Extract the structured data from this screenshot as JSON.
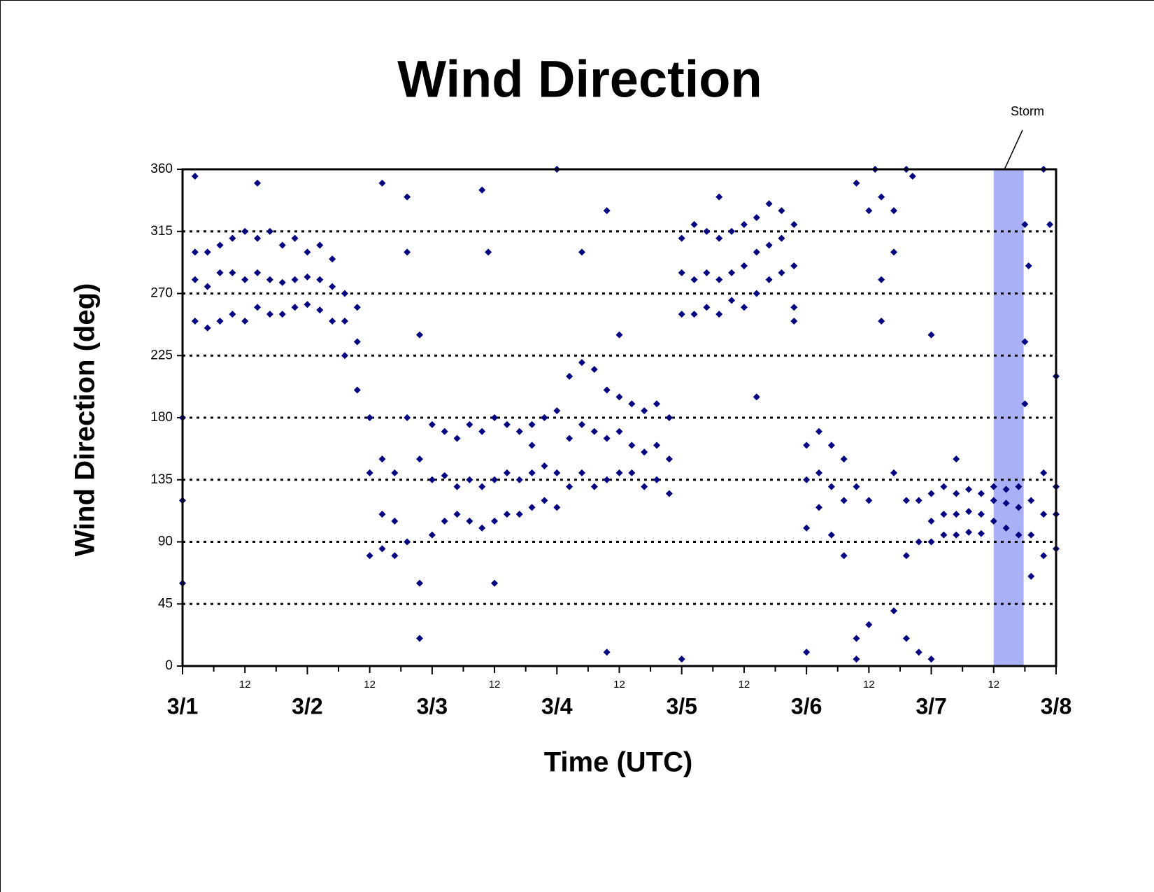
{
  "chart_data": {
    "type": "scatter",
    "title": "Wind Direction",
    "y_label": "Wind Direction (deg)",
    "x_label": "Time (UTC)",
    "color": "#000080",
    "ylim": [
      0,
      360
    ],
    "yticks": [
      0,
      45,
      90,
      135,
      180,
      225,
      270,
      315,
      360
    ],
    "grid": true,
    "xlim": [
      0,
      7
    ],
    "xticks": [
      {
        "value": 0,
        "label": "3/1"
      },
      {
        "value": 1,
        "label": "3/2"
      },
      {
        "value": 2,
        "label": "3/3"
      },
      {
        "value": 3,
        "label": "3/4"
      },
      {
        "value": 4,
        "label": "3/5"
      },
      {
        "value": 5,
        "label": "3/6"
      },
      {
        "value": 6,
        "label": "3/7"
      },
      {
        "value": 7,
        "label": "3/8"
      }
    ],
    "xticks_minor": [
      {
        "value": 0.5,
        "label": "12"
      },
      {
        "value": 1.5,
        "label": "12"
      },
      {
        "value": 2.5,
        "label": "12"
      },
      {
        "value": 3.5,
        "label": "12"
      },
      {
        "value": 4.5,
        "label": "12"
      },
      {
        "value": 5.5,
        "label": "12"
      },
      {
        "value": 6.5,
        "label": "12"
      }
    ],
    "xticks_unlabeled": [
      0.25,
      0.75,
      1.25,
      1.75,
      2.25,
      2.75,
      3.25,
      3.75,
      4.25,
      4.75,
      5.25,
      5.75,
      6.25,
      6.75
    ],
    "storm": {
      "label": "Storm",
      "span": [
        6.5,
        6.74
      ],
      "color": "#aab0f5"
    },
    "x": [
      0,
      0,
      0,
      0.1,
      0.1,
      0.1,
      0.2,
      0.2,
      0.2,
      0.3,
      0.3,
      0.3,
      0.4,
      0.4,
      0.4,
      0.5,
      0.5,
      0.5,
      0.6,
      0.6,
      0.6,
      0.7,
      0.7,
      0.7,
      0.8,
      0.8,
      0.8,
      0.9,
      0.9,
      0.9,
      1,
      1,
      1,
      1.1,
      1.1,
      1.1,
      1.2,
      1.2,
      1.2,
      1.3,
      1.3,
      1.3,
      1.4,
      1.4,
      1.4,
      1.5,
      1.5,
      1.5,
      1.6,
      1.6,
      1.6,
      1.7,
      1.7,
      1.7,
      1.8,
      1.8,
      1.8,
      1.9,
      1.9,
      1.9,
      2,
      2,
      2,
      2.1,
      2.1,
      2.1,
      2.2,
      2.2,
      2.2,
      2.3,
      2.3,
      2.3,
      2.4,
      2.4,
      2.4,
      2.5,
      2.5,
      2.5,
      2.6,
      2.6,
      2.6,
      2.7,
      2.7,
      2.7,
      2.8,
      2.8,
      2.8,
      2.9,
      2.9,
      2.9,
      3,
      3,
      3,
      3.1,
      3.1,
      3.1,
      3.2,
      3.2,
      3.2,
      3.3,
      3.3,
      3.3,
      3.4,
      3.4,
      3.4,
      3.5,
      3.5,
      3.5,
      3.6,
      3.6,
      3.6,
      3.7,
      3.7,
      3.7,
      3.8,
      3.8,
      3.8,
      3.9,
      3.9,
      3.9,
      4,
      4,
      4,
      4.1,
      4.1,
      4.1,
      4.2,
      4.2,
      4.2,
      4.3,
      4.3,
      4.3,
      4.4,
      4.4,
      4.4,
      4.5,
      4.5,
      4.5,
      4.6,
      4.6,
      4.6,
      4.7,
      4.7,
      4.7,
      4.8,
      4.8,
      4.8,
      4.9,
      4.9,
      4.9,
      5,
      5,
      5,
      5.1,
      5.1,
      5.1,
      5.2,
      5.2,
      5.2,
      5.3,
      5.3,
      5.3,
      5.4,
      5.4,
      5.4,
      5.5,
      5.5,
      5.5,
      5.6,
      5.6,
      5.6,
      5.7,
      5.7,
      5.7,
      5.8,
      5.8,
      5.8,
      5.9,
      5.9,
      5.9,
      6,
      6,
      6,
      6.1,
      6.1,
      6.1,
      6.2,
      6.2,
      6.2,
      6.3,
      6.3,
      6.3,
      6.4,
      6.4,
      6.4,
      6.5,
      6.5,
      6.5,
      6.6,
      6.6,
      6.6,
      6.7,
      6.7,
      6.7,
      6.8,
      6.8,
      6.8,
      6.9,
      6.9,
      6.9,
      7,
      7,
      7,
      0.1,
      0.6,
      1.6,
      1.8,
      1.9,
      2.4,
      2.45,
      2.5,
      3,
      3.4,
      3.4,
      3.5,
      4,
      4.3,
      4.6,
      4.9,
      5,
      5.4,
      5.55,
      5.7,
      5.8,
      5.85,
      6,
      6,
      6.2,
      6.75,
      6.78,
      6.9,
      6.95,
      7,
      6.75,
      6.75,
      2.8,
      3.2
    ],
    "values": [
      180,
      120,
      60,
      300,
      280,
      250,
      300,
      275,
      245,
      305,
      285,
      250,
      310,
      285,
      255,
      315,
      280,
      250,
      310,
      285,
      260,
      315,
      280,
      255,
      305,
      278,
      255,
      310,
      280,
      260,
      300,
      282,
      262,
      305,
      280,
      258,
      295,
      275,
      250,
      270,
      250,
      225,
      260,
      235,
      200,
      180,
      140,
      80,
      150,
      110,
      85,
      140,
      105,
      80,
      300,
      180,
      90,
      240,
      150,
      60,
      175,
      135,
      95,
      170,
      138,
      105,
      165,
      130,
      110,
      175,
      135,
      105,
      170,
      130,
      100,
      180,
      135,
      105,
      175,
      140,
      110,
      170,
      135,
      110,
      175,
      140,
      115,
      180,
      145,
      120,
      185,
      140,
      115,
      210,
      165,
      130,
      220,
      175,
      140,
      215,
      170,
      130,
      200,
      165,
      135,
      195,
      170,
      140,
      190,
      160,
      140,
      185,
      155,
      130,
      190,
      160,
      135,
      180,
      150,
      125,
      310,
      285,
      255,
      320,
      280,
      255,
      315,
      285,
      260,
      310,
      280,
      255,
      315,
      285,
      265,
      320,
      290,
      260,
      325,
      300,
      270,
      335,
      305,
      280,
      330,
      310,
      285,
      320,
      290,
      250,
      160,
      135,
      100,
      170,
      140,
      115,
      160,
      130,
      95,
      150,
      120,
      80,
      350,
      130,
      20,
      330,
      120,
      30,
      340,
      280,
      250,
      300,
      140,
      40,
      120,
      80,
      20,
      120,
      90,
      10,
      125,
      105,
      90,
      130,
      110,
      95,
      125,
      110,
      95,
      128,
      112,
      97,
      125,
      110,
      96,
      130,
      120,
      105,
      128,
      118,
      100,
      130,
      115,
      95,
      120,
      95,
      65,
      140,
      110,
      80,
      130,
      110,
      85,
      355,
      350,
      350,
      340,
      20,
      345,
      300,
      60,
      360,
      330,
      10,
      240,
      5,
      340,
      195,
      260,
      10,
      5,
      360,
      330,
      360,
      355,
      240,
      5,
      150,
      320,
      290,
      360,
      320,
      210,
      235,
      190,
      160,
      300
    ]
  }
}
